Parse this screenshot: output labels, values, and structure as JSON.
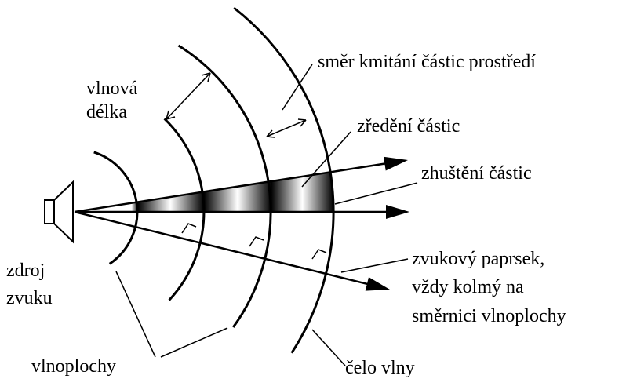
{
  "labels": {
    "direction": "směr kmitání částic prostředí",
    "wavelength": [
      "vlnová",
      "délka"
    ],
    "rarefaction": "zředění částic",
    "compression": "zhuštění částic",
    "source": [
      "zdroj",
      "zvuku"
    ],
    "ray": [
      "zvukový paprsek,",
      "vždy kolmý na",
      "směrnici vlnoplochy"
    ],
    "wavefronts": "vlnoplochy",
    "front": "čelo vlny"
  }
}
